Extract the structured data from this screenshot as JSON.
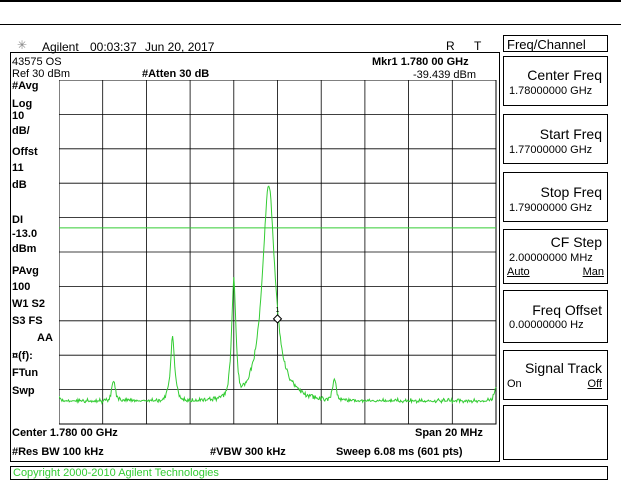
{
  "header": {
    "brand": "Agilent",
    "time": "00:03:37",
    "date": "Jun 20, 2017",
    "r_indicator": "R",
    "t_indicator": "T"
  },
  "screen": {
    "model": "43575 OS",
    "marker_label": "Mkr1  1.780 00 GHz",
    "marker_value": "-39.439 dBm",
    "ref_level": "Ref 30 dBm",
    "atten": "#Atten 30 dB",
    "left_labels": [
      "#Avg",
      "Log",
      "10",
      "dB/",
      "Offst",
      "11",
      "dB",
      "DI",
      "-13.0",
      "dBm",
      "PAvg",
      "100",
      "W1  S2",
      "S3   FS",
      "AA",
      "¤(f):",
      "FTun",
      "Swp"
    ],
    "center": "Center 1.780 00 GHz",
    "span": "Span 20 MHz",
    "rbw": "#Res BW 100 kHz",
    "vbw": "#VBW 300 kHz",
    "sweep": "Sweep 6.08 ms (601 pts)"
  },
  "softkeys": {
    "menu_title": "Freq/Channel",
    "center_freq": {
      "label": "Center Freq",
      "value": "1.78000000 GHz"
    },
    "start_freq": {
      "label": "Start Freq",
      "value": "1.77000000 GHz"
    },
    "stop_freq": {
      "label": "Stop Freq",
      "value": "1.79000000 GHz"
    },
    "cf_step": {
      "label": "CF Step",
      "value": "2.00000000 MHz",
      "opt_auto": "Auto",
      "opt_man": "Man"
    },
    "freq_offset": {
      "label": "Freq Offset",
      "value": "0.00000000  Hz"
    },
    "signal_track": {
      "label": "Signal Track",
      "opt_on": "On",
      "opt_off": "Off"
    }
  },
  "footer": {
    "copyright": "Copyright 2000-2010 Agilent Technologies"
  },
  "colors": {
    "trace": "#33cc33",
    "display_line": "#33cc33",
    "footer_text": "#33cc33"
  },
  "chart_data": {
    "type": "line",
    "x_unit": "GHz",
    "y_unit": "dBm",
    "xlim": [
      1.77,
      1.79
    ],
    "ylim": [
      -70,
      30
    ],
    "display_line": -13.0,
    "marker": {
      "x": 1.78,
      "y": -39.439
    },
    "peaks": [
      {
        "x": 1.77,
        "y": -62
      },
      {
        "x": 1.7725,
        "y": -58
      },
      {
        "x": 1.7752,
        "y": -45
      },
      {
        "x": 1.778,
        "y": -28
      },
      {
        "x": 1.7796,
        "y": -0.5
      },
      {
        "x": 1.7826,
        "y": -57
      },
      {
        "x": 1.7888,
        "y": -64
      },
      {
        "x": 1.79,
        "y": -60
      }
    ],
    "noise_floor": -64
  }
}
